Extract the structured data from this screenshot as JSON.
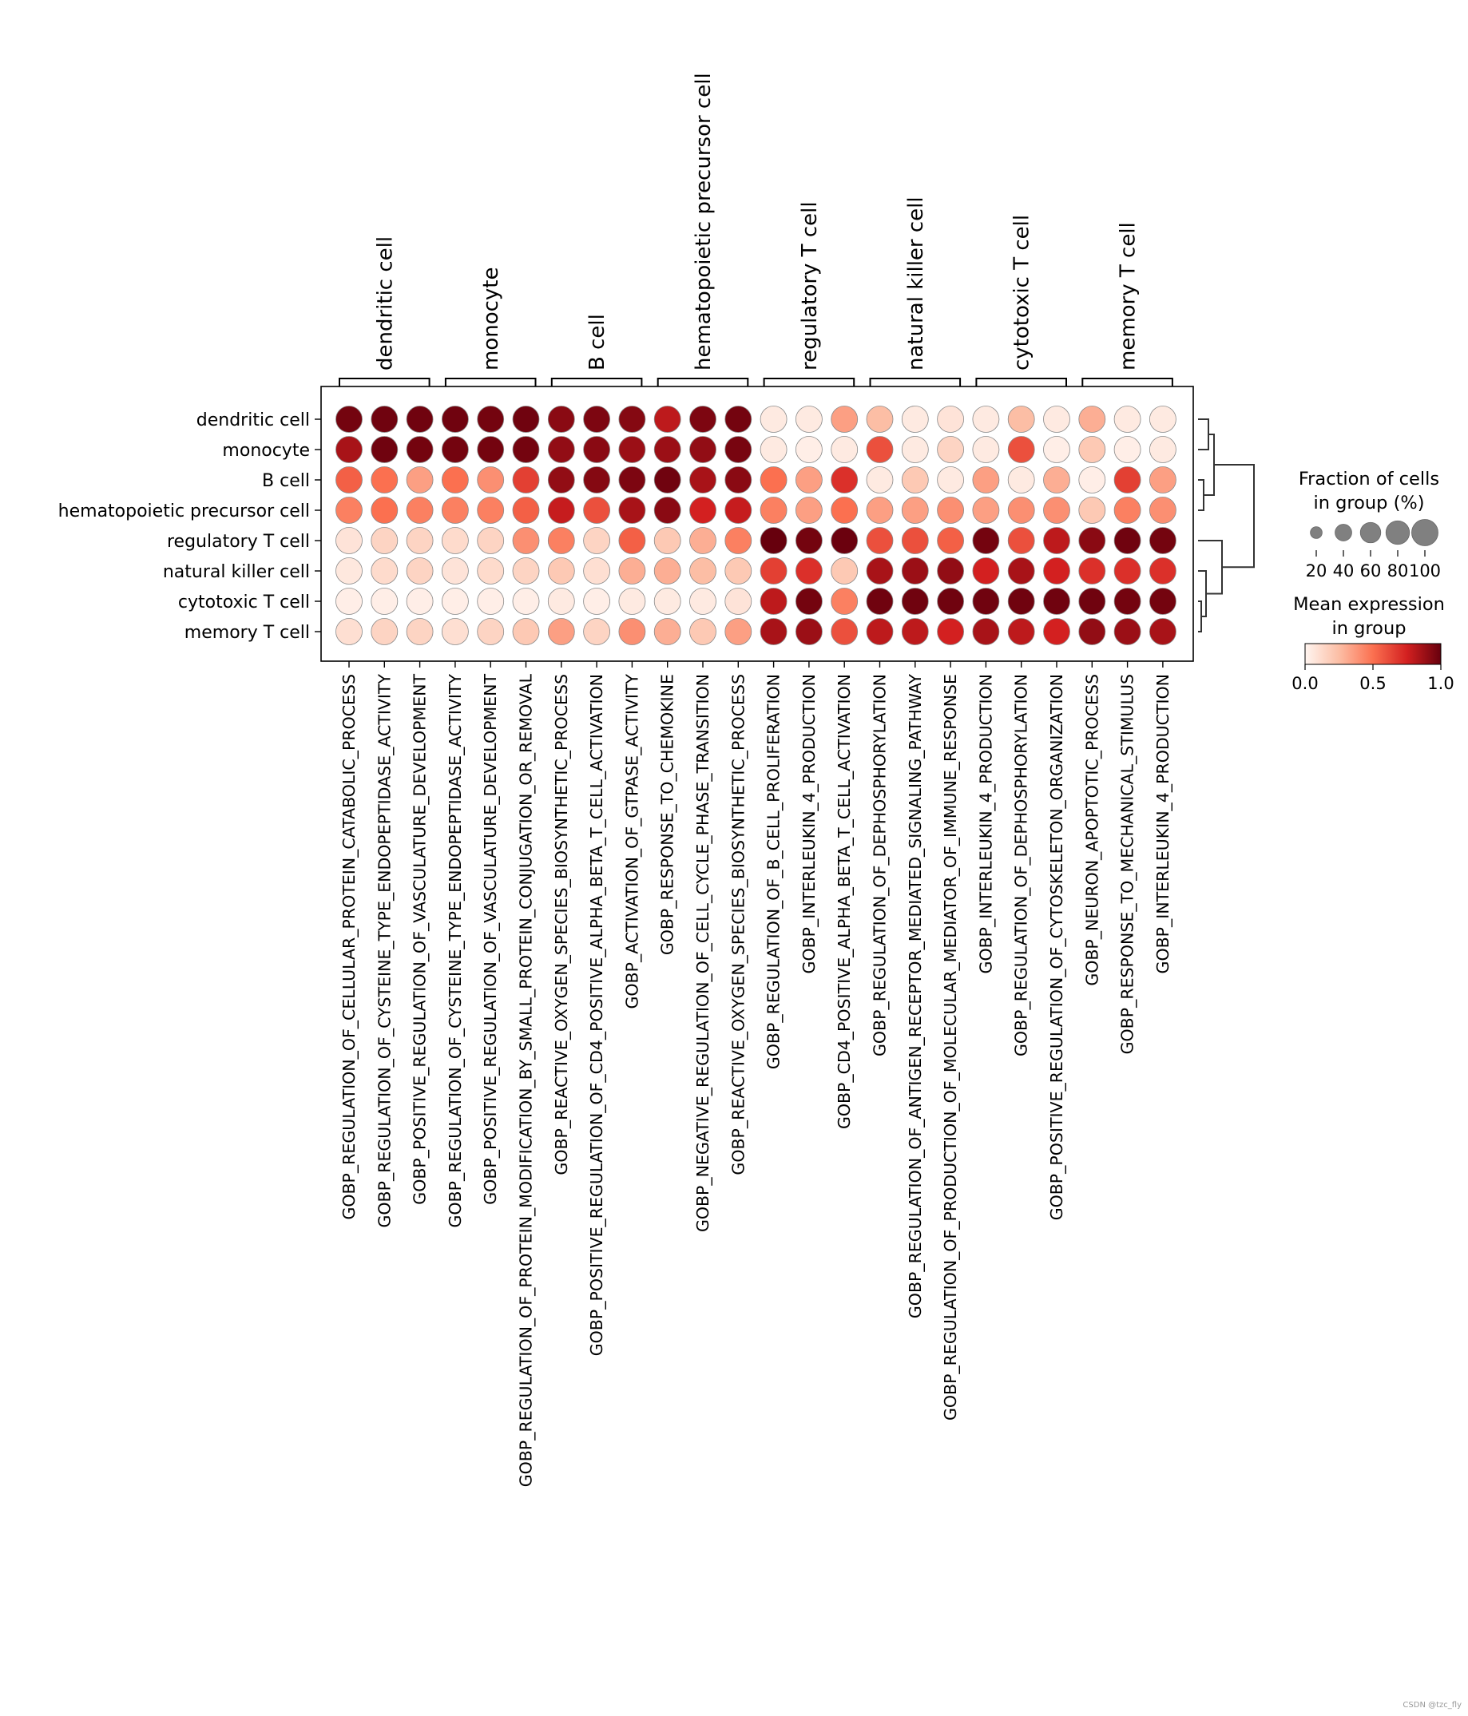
{
  "chart_data": {
    "type": "dotplot",
    "rows": [
      "dendritic cell",
      "monocyte",
      "B cell",
      "hematopoietic precursor cell",
      "regulatory T cell",
      "natural killer cell",
      "cytotoxic T cell",
      "memory T cell"
    ],
    "columns": [
      "GOBP_REGULATION_OF_CELLULAR_PROTEIN_CATABOLIC_PROCESS",
      "GOBP_REGULATION_OF_CYSTEINE_TYPE_ENDOPEPTIDASE_ACTIVITY",
      "GOBP_POSITIVE_REGULATION_OF_VASCULATURE_DEVELOPMENT",
      "GOBP_REGULATION_OF_CYSTEINE_TYPE_ENDOPEPTIDASE_ACTIVITY",
      "GOBP_POSITIVE_REGULATION_OF_VASCULATURE_DEVELOPMENT",
      "GOBP_REGULATION_OF_PROTEIN_MODIFICATION_BY_SMALL_PROTEIN_CONJUGATION_OR_REMOVAL",
      "GOBP_REACTIVE_OXYGEN_SPECIES_BIOSYNTHETIC_PROCESS",
      "GOBP_POSITIVE_REGULATION_OF_CD4_POSITIVE_ALPHA_BETA_T_CELL_ACTIVATION",
      "GOBP_ACTIVATION_OF_GTPASE_ACTIVITY",
      "GOBP_RESPONSE_TO_CHEMOKINE",
      "GOBP_NEGATIVE_REGULATION_OF_CELL_CYCLE_PHASE_TRANSITION",
      "GOBP_REACTIVE_OXYGEN_SPECIES_BIOSYNTHETIC_PROCESS",
      "GOBP_REGULATION_OF_B_CELL_PROLIFERATION",
      "GOBP_INTERLEUKIN_4_PRODUCTION",
      "GOBP_CD4_POSITIVE_ALPHA_BETA_T_CELL_ACTIVATION",
      "GOBP_REGULATION_OF_DEPHOSPHORYLATION",
      "GOBP_REGULATION_OF_ANTIGEN_RECEPTOR_MEDIATED_SIGNALING_PATHWAY",
      "GOBP_REGULATION_OF_PRODUCTION_OF_MOLECULAR_MEDIATOR_OF_IMMUNE_RESPONSE",
      "GOBP_INTERLEUKIN_4_PRODUCTION",
      "GOBP_REGULATION_OF_DEPHOSPHORYLATION",
      "GOBP_POSITIVE_REGULATION_OF_CYTOSKELETON_ORGANIZATION",
      "GOBP_NEURON_APOPTOTIC_PROCESS",
      "GOBP_RESPONSE_TO_MECHANICAL_STIMULUS",
      "GOBP_INTERLEUKIN_4_PRODUCTION"
    ],
    "groups": [
      {
        "label": "dendritic cell",
        "start": 0,
        "end": 2
      },
      {
        "label": "monocyte",
        "start": 3,
        "end": 5
      },
      {
        "label": "B cell",
        "start": 6,
        "end": 8
      },
      {
        "label": "hematopoietic precursor cell",
        "start": 9,
        "end": 11
      },
      {
        "label": "regulatory T cell",
        "start": 12,
        "end": 14
      },
      {
        "label": "natural killer cell",
        "start": 15,
        "end": 17
      },
      {
        "label": "cytotoxic T cell",
        "start": 18,
        "end": 20
      },
      {
        "label": "memory T cell",
        "start": 21,
        "end": 23
      }
    ],
    "mean_expression": [
      [
        0.97,
        0.98,
        0.98,
        0.98,
        0.97,
        0.98,
        0.92,
        0.95,
        0.93,
        0.8,
        0.95,
        0.97,
        0.05,
        0.05,
        0.35,
        0.25,
        0.05,
        0.08,
        0.05,
        0.25,
        0.05,
        0.3,
        0.05,
        0.05
      ],
      [
        0.85,
        0.98,
        0.97,
        0.97,
        0.97,
        0.97,
        0.9,
        0.92,
        0.88,
        0.88,
        0.9,
        0.96,
        0.05,
        0.03,
        0.05,
        0.6,
        0.05,
        0.15,
        0.05,
        0.6,
        0.03,
        0.2,
        0.03,
        0.05
      ],
      [
        0.55,
        0.5,
        0.35,
        0.5,
        0.4,
        0.65,
        0.9,
        0.93,
        0.95,
        0.98,
        0.85,
        0.92,
        0.5,
        0.35,
        0.7,
        0.05,
        0.2,
        0.05,
        0.35,
        0.05,
        0.3,
        0.03,
        0.65,
        0.35
      ],
      [
        0.45,
        0.5,
        0.45,
        0.45,
        0.45,
        0.55,
        0.78,
        0.6,
        0.85,
        0.92,
        0.75,
        0.78,
        0.45,
        0.35,
        0.5,
        0.35,
        0.35,
        0.4,
        0.35,
        0.4,
        0.4,
        0.2,
        0.45,
        0.4
      ],
      [
        0.08,
        0.15,
        0.15,
        0.12,
        0.15,
        0.4,
        0.45,
        0.15,
        0.55,
        0.2,
        0.3,
        0.45,
        1.0,
        0.97,
        0.99,
        0.6,
        0.6,
        0.55,
        0.97,
        0.6,
        0.8,
        0.92,
        0.98,
        0.97
      ],
      [
        0.06,
        0.12,
        0.15,
        0.08,
        0.12,
        0.15,
        0.2,
        0.1,
        0.3,
        0.3,
        0.25,
        0.2,
        0.65,
        0.7,
        0.2,
        0.85,
        0.88,
        0.9,
        0.75,
        0.85,
        0.75,
        0.7,
        0.7,
        0.7
      ],
      [
        0.03,
        0.03,
        0.03,
        0.03,
        0.03,
        0.03,
        0.05,
        0.03,
        0.05,
        0.05,
        0.05,
        0.08,
        0.8,
        0.97,
        0.45,
        0.98,
        0.98,
        0.98,
        0.98,
        0.98,
        0.98,
        0.98,
        0.97,
        0.97
      ],
      [
        0.1,
        0.15,
        0.15,
        0.1,
        0.15,
        0.2,
        0.35,
        0.15,
        0.4,
        0.3,
        0.2,
        0.35,
        0.85,
        0.88,
        0.6,
        0.8,
        0.8,
        0.75,
        0.85,
        0.8,
        0.75,
        0.9,
        0.88,
        0.85
      ]
    ],
    "fraction_of_cells_percent": [
      [
        100,
        100,
        100,
        100,
        100,
        100,
        100,
        100,
        100,
        100,
        100,
        100,
        100,
        100,
        100,
        100,
        100,
        100,
        100,
        100,
        100,
        100,
        100,
        100
      ],
      [
        100,
        100,
        100,
        100,
        100,
        100,
        100,
        100,
        100,
        100,
        100,
        100,
        100,
        100,
        100,
        100,
        100,
        100,
        100,
        100,
        100,
        100,
        100,
        100
      ],
      [
        100,
        100,
        100,
        100,
        100,
        100,
        100,
        100,
        100,
        100,
        100,
        100,
        100,
        100,
        100,
        100,
        100,
        100,
        100,
        100,
        100,
        100,
        100,
        100
      ],
      [
        100,
        100,
        100,
        100,
        100,
        100,
        100,
        100,
        100,
        100,
        100,
        100,
        100,
        100,
        100,
        100,
        100,
        100,
        100,
        100,
        100,
        100,
        100,
        100
      ],
      [
        100,
        100,
        100,
        100,
        100,
        100,
        100,
        100,
        100,
        100,
        100,
        100,
        100,
        100,
        100,
        100,
        100,
        100,
        100,
        100,
        100,
        100,
        100,
        100
      ],
      [
        100,
        100,
        100,
        100,
        100,
        100,
        100,
        100,
        100,
        100,
        100,
        100,
        100,
        100,
        100,
        100,
        100,
        100,
        100,
        100,
        100,
        100,
        100,
        100
      ],
      [
        100,
        100,
        100,
        100,
        100,
        100,
        100,
        100,
        100,
        100,
        100,
        100,
        100,
        100,
        100,
        100,
        100,
        100,
        100,
        100,
        100,
        100,
        100,
        100
      ],
      [
        100,
        100,
        100,
        100,
        100,
        100,
        100,
        100,
        100,
        100,
        100,
        100,
        100,
        100,
        100,
        100,
        100,
        100,
        100,
        100,
        100,
        100,
        100,
        100
      ]
    ],
    "dendrogram_order": [
      "dendritic cell",
      "monocyte",
      "B cell",
      "hematopoietic precursor cell",
      "regulatory T cell",
      "natural killer cell",
      "cytotoxic T cell",
      "memory T cell"
    ],
    "colormap": [
      "#fff5f0",
      "#fcbea5",
      "#fb7050",
      "#d32020",
      "#67000d"
    ],
    "size_legend": {
      "title_line1": "Fraction of cells",
      "title_line2": "in group (%)",
      "values": [
        20,
        40,
        60,
        80,
        100
      ],
      "tick_labels": [
        "20",
        "40",
        "60",
        "80",
        "100"
      ]
    },
    "color_legend": {
      "title_line1": "Mean expression",
      "title_line2": "in group",
      "range": [
        0.0,
        1.0
      ],
      "tick_labels": [
        "0.0",
        "0.5",
        "1.0"
      ]
    },
    "grid": false,
    "legend_position": "right"
  },
  "watermark": "CSDN @tzc_fly"
}
